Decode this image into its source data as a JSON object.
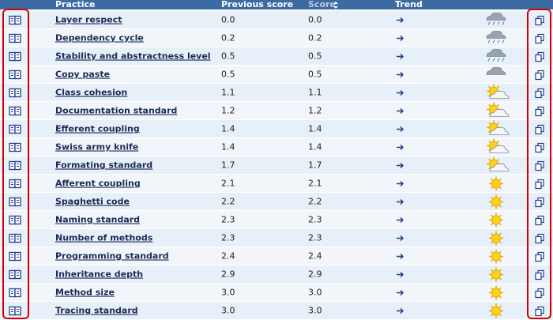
{
  "table": {
    "header": [
      "Practice",
      "Previous score",
      "Score",
      "Trend"
    ],
    "rows": [
      [
        "Layer respect",
        "0.0",
        "0.0"
      ],
      [
        "Dependency cycle",
        "0.2",
        "0.2"
      ],
      [
        "Stability and abstractness level",
        "0.5",
        "0.5"
      ],
      [
        "Copy paste",
        "0.5",
        "0.5"
      ],
      [
        "Class cohesion",
        "1.1",
        "1.1"
      ],
      [
        "Documentation standard",
        "1.2",
        "1.2"
      ],
      [
        "Efferent coupling",
        "1.4",
        "1.4"
      ],
      [
        "Swiss army knife",
        "1.4",
        "1.4"
      ],
      [
        "Formating standard",
        "1.7",
        "1.7"
      ],
      [
        "Afferent coupling",
        "2.1",
        "2.1"
      ],
      [
        "Spaghetti code",
        "2.2",
        "2.2"
      ],
      [
        "Naming standard",
        "2.3",
        "2.3"
      ],
      [
        "Number of methods",
        "2.3",
        "2.3"
      ],
      [
        "Programming standard",
        "2.4",
        "2.4"
      ],
      [
        "Inheritance depth",
        "2.9",
        "2.9"
      ],
      [
        "Method size",
        "3.0",
        "3.0"
      ],
      [
        "Tracing standard",
        "3.0",
        "3.0"
      ]
    ]
  }
}
